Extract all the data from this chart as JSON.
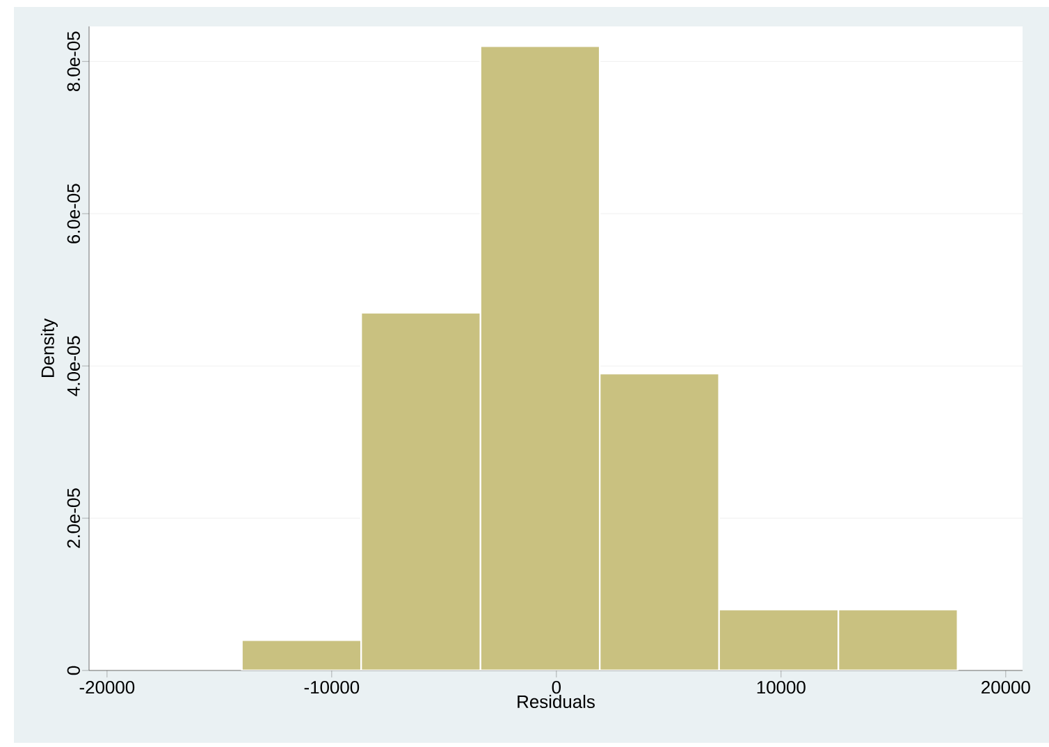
{
  "chart_data": {
    "type": "histogram",
    "xlabel": "Residuals",
    "ylabel": "Density",
    "bins": [
      -14000,
      -8690,
      -3380,
      1930,
      7240,
      12550,
      17860
    ],
    "values": [
      4e-06,
      4.7e-05,
      8.2e-05,
      3.9e-05,
      8e-06,
      8e-06
    ],
    "color": "#c9c180",
    "xlim": [
      -20800,
      20750
    ],
    "ylim": [
      0,
      8.46e-05
    ],
    "xticks": [
      -20000,
      -10000,
      0,
      10000,
      20000
    ],
    "yticks": [
      0,
      {
        "value": 2e-05,
        "label": "2.0e-05"
      },
      {
        "value": 4e-05,
        "label": "4.0e-05"
      },
      {
        "value": 6e-05,
        "label": "6.0e-05"
      },
      {
        "value": 8e-05,
        "label": "8.0e-05"
      }
    ],
    "grid": "y"
  }
}
